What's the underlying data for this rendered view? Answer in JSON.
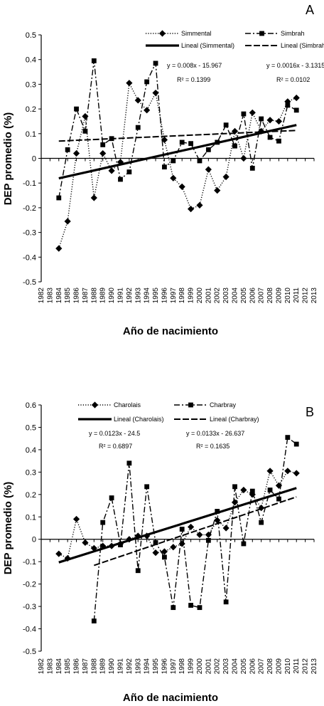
{
  "chart_data": [
    {
      "type": "line",
      "panel_label": "A",
      "xlabel": "Año de nacimiento",
      "ylabel": "DEP promedio (%)",
      "xlim": [
        1982,
        2013
      ],
      "ylim": [
        -0.5,
        0.5
      ],
      "x_ticks": [
        "1982",
        "1983",
        "1984",
        "1985",
        "1986",
        "1987",
        "1988",
        "1989",
        "1990",
        "1991",
        "1992",
        "1993",
        "1994",
        "1995",
        "1996",
        "1997",
        "1998",
        "1999",
        "2000",
        "2001",
        "2002",
        "2003",
        "2004",
        "2005",
        "2006",
        "2007",
        "2008",
        "2009",
        "2010",
        "2011",
        "2012",
        "2013"
      ],
      "y_ticks": [
        "0.5",
        "0.4",
        "0.3",
        "0.2",
        "0.1",
        "0",
        "-0.1",
        "-0.2",
        "-0.3",
        "-0.4",
        "-0.5"
      ],
      "legend_position": "top",
      "series": [
        {
          "name": "Simmental",
          "marker": "diamond",
          "line": "dotted",
          "x": [
            1984,
            1985,
            1986,
            1987,
            1988,
            1989,
            1990,
            1991,
            1992,
            1993,
            1994,
            1995,
            1996,
            1997,
            1998,
            1999,
            2000,
            2001,
            2002,
            2003,
            2004,
            2005,
            2006,
            2007,
            2008,
            2009,
            2010,
            2011
          ],
          "y": [
            -0.365,
            -0.255,
            0.02,
            0.17,
            -0.16,
            0.02,
            -0.05,
            -0.015,
            0.305,
            0.235,
            0.195,
            0.265,
            0.075,
            -0.08,
            -0.115,
            -0.205,
            -0.19,
            -0.045,
            -0.13,
            -0.075,
            0.11,
            0.0,
            0.185,
            0.11,
            0.155,
            0.15,
            0.23,
            0.245
          ]
        },
        {
          "name": "Simbrah",
          "marker": "square",
          "line": "dash-dot",
          "x": [
            1984,
            1985,
            1986,
            1987,
            1988,
            1989,
            1990,
            1991,
            1992,
            1993,
            1994,
            1995,
            1996,
            1997,
            1998,
            1999,
            2000,
            2001,
            2002,
            2003,
            2004,
            2005,
            2006,
            2007,
            2008,
            2009,
            2010,
            2011
          ],
          "y": [
            -0.16,
            0.035,
            0.2,
            0.11,
            0.395,
            0.055,
            0.08,
            -0.085,
            -0.055,
            0.125,
            0.31,
            0.385,
            -0.035,
            -0.01,
            0.065,
            0.06,
            -0.01,
            0.035,
            0.065,
            0.135,
            0.05,
            0.18,
            -0.04,
            0.16,
            0.085,
            0.07,
            0.215,
            0.195
          ]
        },
        {
          "name": "Lineal (Simmental)",
          "line": "solid-thick",
          "equation": "y = 0.008x - 15.967",
          "r2": "R² = 0.1399",
          "x": [
            1984,
            2011
          ],
          "y": [
            -0.081,
            0.135
          ]
        },
        {
          "name": "Lineal (Simbrah)",
          "line": "dashed",
          "equation": "y = 0.0016x - 3.1315",
          "r2": "R² = 0.0102",
          "x": [
            1984,
            2011
          ],
          "y": [
            0.0699,
            0.1131
          ]
        }
      ]
    },
    {
      "type": "line",
      "panel_label": "B",
      "xlabel": "Año de nacimiento",
      "ylabel": "DEP promedio (%)",
      "xlim": [
        1982,
        2013
      ],
      "ylim": [
        -0.5,
        0.6
      ],
      "x_ticks": [
        "1982",
        "1983",
        "1984",
        "1985",
        "1986",
        "1987",
        "1988",
        "1989",
        "1990",
        "1991",
        "1992",
        "1993",
        "1994",
        "1995",
        "1996",
        "1997",
        "1998",
        "1999",
        "2000",
        "2001",
        "2002",
        "2003",
        "2004",
        "2005",
        "2006",
        "2007",
        "2008",
        "2009",
        "2010",
        "2011",
        "2012",
        "2013"
      ],
      "y_ticks": [
        "0.6",
        "0.5",
        "0.4",
        "0.3",
        "0.2",
        "0.1",
        "0",
        "-0.1",
        "-0.2",
        "-0.3",
        "-0.4",
        "-0.5"
      ],
      "legend_position": "top",
      "series": [
        {
          "name": "Charolais",
          "marker": "diamond",
          "line": "dotted",
          "x": [
            1984,
            1985,
            1986,
            1987,
            1988,
            1989,
            1990,
            1991,
            1992,
            1993,
            1994,
            1995,
            1996,
            1997,
            1998,
            1999,
            2000,
            2001,
            2002,
            2003,
            2004,
            2005,
            2006,
            2007,
            2008,
            2009,
            2010,
            2011
          ],
          "y": [
            -0.065,
            -0.085,
            0.09,
            -0.015,
            -0.04,
            -0.03,
            -0.03,
            -0.02,
            0.0,
            0.015,
            0.015,
            -0.06,
            -0.055,
            -0.035,
            -0.02,
            0.055,
            0.02,
            0.02,
            0.085,
            0.05,
            0.165,
            0.22,
            0.2,
            0.14,
            0.305,
            0.24,
            0.305,
            0.295
          ]
        },
        {
          "name": "Charbray",
          "marker": "square",
          "line": "dash-dot",
          "x": [
            1988,
            1989,
            1990,
            1991,
            1992,
            1993,
            1994,
            1995,
            1996,
            1997,
            1998,
            1999,
            2000,
            2001,
            2002,
            2003,
            2004,
            2005,
            2006,
            2007,
            2008,
            2009,
            2010,
            2011
          ],
          "y": [
            -0.365,
            0.075,
            0.185,
            -0.025,
            0.34,
            -0.14,
            0.235,
            -0.015,
            -0.08,
            -0.305,
            0.045,
            -0.295,
            -0.305,
            -0.005,
            0.125,
            -0.28,
            0.235,
            -0.02,
            0.215,
            0.075,
            0.22,
            0.18,
            0.455,
            0.425
          ]
        },
        {
          "name": "Lineal (Charolais)",
          "line": "solid-thick",
          "equation": "y = 0.0123x - 24.5",
          "r2": "R² = 0.6897",
          "x": [
            1984,
            2011
          ],
          "y": [
            -0.1032,
            0.2289
          ]
        },
        {
          "name": "Lineal (Charbray)",
          "line": "dashed",
          "equation": "y = 0.0133x - 26.637",
          "r2": "R² = 0.1635",
          "x": [
            1988,
            2011
          ],
          "y": [
            -0.1166,
            0.1893
          ]
        }
      ]
    }
  ]
}
